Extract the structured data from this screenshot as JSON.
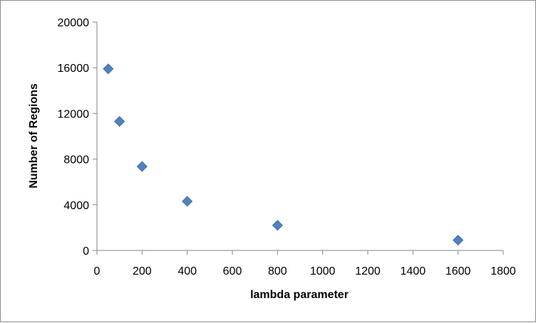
{
  "chart_data": {
    "type": "scatter",
    "title": "",
    "xlabel": "lambda parameter",
    "ylabel": "Number of Regions",
    "xlim": [
      0,
      1800
    ],
    "ylim": [
      0,
      20000
    ],
    "x_ticks": [
      0,
      200,
      400,
      600,
      800,
      1000,
      1200,
      1400,
      1600,
      1800
    ],
    "y_ticks": [
      0,
      4000,
      8000,
      12000,
      16000,
      20000
    ],
    "grid": false,
    "legend": "none",
    "marker": "diamond",
    "marker_color": "#4f81bd",
    "series": [
      {
        "points": [
          {
            "x": 50,
            "y": 15900
          },
          {
            "x": 100,
            "y": 11300
          },
          {
            "x": 200,
            "y": 7350
          },
          {
            "x": 400,
            "y": 4300
          },
          {
            "x": 800,
            "y": 2200
          },
          {
            "x": 1600,
            "y": 900
          }
        ]
      }
    ]
  }
}
